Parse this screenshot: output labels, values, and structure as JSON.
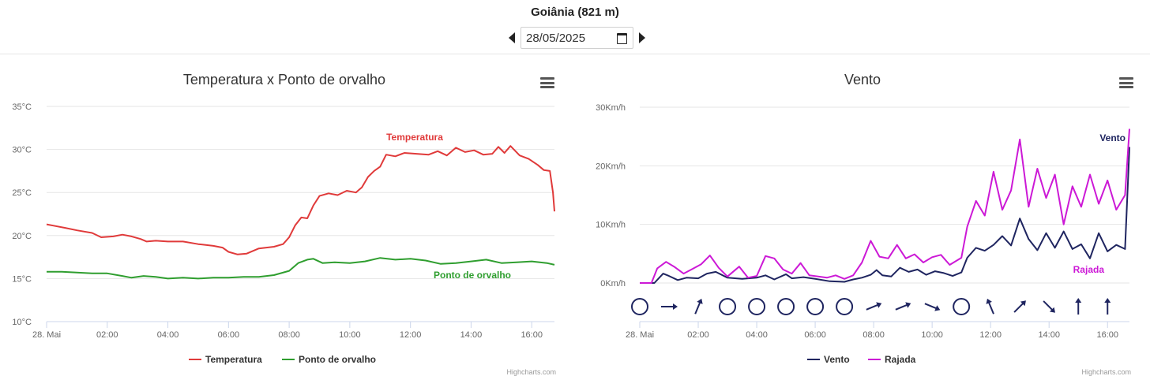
{
  "header": {
    "station": "Goiânia (821 m)",
    "date_value": "28/05/2025"
  },
  "credits": "Highcharts.com",
  "chart_data": [
    {
      "type": "line",
      "title": "Temperatura x Ponto de orvalho",
      "yTicks": [
        "10°C",
        "15°C",
        "20°C",
        "25°C",
        "30°C",
        "35°C"
      ],
      "xTicks": [
        "28. Mai",
        "02:00",
        "04:00",
        "06:00",
        "08:00",
        "10:00",
        "12:00",
        "14:00",
        "16:00"
      ],
      "xlim_hours": [
        0,
        16.75
      ],
      "ylim": [
        10,
        35
      ],
      "grid": true,
      "legend": "bottom-center",
      "series": [
        {
          "name": "Temperatura",
          "color": "#e03a3a",
          "points": [
            [
              0,
              21.3
            ],
            [
              0.3,
              21.1
            ],
            [
              0.6,
              20.9
            ],
            [
              1,
              20.6
            ],
            [
              1.5,
              20.3
            ],
            [
              1.8,
              19.8
            ],
            [
              2.2,
              19.9
            ],
            [
              2.5,
              20.1
            ],
            [
              2.8,
              19.9
            ],
            [
              3.1,
              19.6
            ],
            [
              3.3,
              19.3
            ],
            [
              3.6,
              19.4
            ],
            [
              4,
              19.3
            ],
            [
              4.5,
              19.3
            ],
            [
              5,
              19.0
            ],
            [
              5.5,
              18.8
            ],
            [
              5.8,
              18.6
            ],
            [
              6.0,
              18.1
            ],
            [
              6.3,
              17.8
            ],
            [
              6.6,
              17.9
            ],
            [
              7.0,
              18.5
            ],
            [
              7.5,
              18.7
            ],
            [
              7.8,
              19.0
            ],
            [
              8.0,
              19.8
            ],
            [
              8.2,
              21.2
            ],
            [
              8.4,
              22.1
            ],
            [
              8.6,
              22.0
            ],
            [
              8.8,
              23.5
            ],
            [
              9.0,
              24.6
            ],
            [
              9.3,
              24.9
            ],
            [
              9.6,
              24.7
            ],
            [
              9.9,
              25.2
            ],
            [
              10.2,
              25.0
            ],
            [
              10.4,
              25.6
            ],
            [
              10.6,
              26.8
            ],
            [
              10.8,
              27.5
            ],
            [
              11.0,
              28.0
            ],
            [
              11.2,
              29.4
            ],
            [
              11.5,
              29.2
            ],
            [
              11.8,
              29.6
            ],
            [
              12.2,
              29.5
            ],
            [
              12.6,
              29.4
            ],
            [
              12.9,
              29.8
            ],
            [
              13.2,
              29.3
            ],
            [
              13.5,
              30.2
            ],
            [
              13.8,
              29.7
            ],
            [
              14.1,
              29.9
            ],
            [
              14.4,
              29.4
            ],
            [
              14.7,
              29.5
            ],
            [
              14.9,
              30.3
            ],
            [
              15.1,
              29.6
            ],
            [
              15.3,
              30.4
            ],
            [
              15.6,
              29.3
            ],
            [
              15.9,
              28.9
            ],
            [
              16.2,
              28.2
            ],
            [
              16.4,
              27.6
            ],
            [
              16.6,
              27.5
            ],
            [
              16.7,
              25.0
            ],
            [
              16.75,
              22.8
            ]
          ]
        },
        {
          "name": "Ponto de orvalho",
          "color": "#2f9e2f",
          "points": [
            [
              0,
              15.8
            ],
            [
              0.5,
              15.8
            ],
            [
              1,
              15.7
            ],
            [
              1.5,
              15.6
            ],
            [
              2,
              15.6
            ],
            [
              2.5,
              15.3
            ],
            [
              2.8,
              15.1
            ],
            [
              3.2,
              15.3
            ],
            [
              3.6,
              15.2
            ],
            [
              4,
              15.0
            ],
            [
              4.5,
              15.1
            ],
            [
              5,
              15.0
            ],
            [
              5.5,
              15.1
            ],
            [
              6,
              15.1
            ],
            [
              6.5,
              15.2
            ],
            [
              7,
              15.2
            ],
            [
              7.5,
              15.4
            ],
            [
              8,
              15.9
            ],
            [
              8.3,
              16.8
            ],
            [
              8.6,
              17.2
            ],
            [
              8.8,
              17.3
            ],
            [
              9.1,
              16.8
            ],
            [
              9.5,
              16.9
            ],
            [
              10,
              16.8
            ],
            [
              10.5,
              17.0
            ],
            [
              11,
              17.4
            ],
            [
              11.5,
              17.2
            ],
            [
              12,
              17.3
            ],
            [
              12.5,
              17.1
            ],
            [
              13,
              16.7
            ],
            [
              13.5,
              16.8
            ],
            [
              14,
              17.0
            ],
            [
              14.5,
              17.2
            ],
            [
              15,
              16.8
            ],
            [
              15.5,
              16.9
            ],
            [
              16,
              17.0
            ],
            [
              16.5,
              16.8
            ],
            [
              16.75,
              16.6
            ]
          ]
        }
      ]
    },
    {
      "type": "line",
      "title": "Vento",
      "yTicks": [
        "0Km/h",
        "10Km/h",
        "20Km/h",
        "30Km/h"
      ],
      "xTicks": [
        "28. Mai",
        "02:00",
        "04:00",
        "06:00",
        "08:00",
        "10:00",
        "12:00",
        "14:00",
        "16:00"
      ],
      "xlim_hours": [
        0,
        16.75
      ],
      "ylim": [
        0,
        30
      ],
      "grid": true,
      "legend": "bottom-center",
      "series": [
        {
          "name": "Vento",
          "color": "#1f2560",
          "points": [
            [
              0,
              0
            ],
            [
              0.5,
              0
            ],
            [
              0.8,
              1.6
            ],
            [
              1,
              1.2
            ],
            [
              1.3,
              0.5
            ],
            [
              1.6,
              0.9
            ],
            [
              2,
              0.8
            ],
            [
              2.3,
              1.6
            ],
            [
              2.6,
              1.9
            ],
            [
              3,
              0.9
            ],
            [
              3.5,
              0.7
            ],
            [
              4,
              0.9
            ],
            [
              4.3,
              1.3
            ],
            [
              4.6,
              0.6
            ],
            [
              5,
              1.5
            ],
            [
              5.2,
              0.8
            ],
            [
              5.6,
              1.0
            ],
            [
              6,
              0.7
            ],
            [
              6.5,
              0.3
            ],
            [
              7,
              0.2
            ],
            [
              7.3,
              0.6
            ],
            [
              7.6,
              0.9
            ],
            [
              7.9,
              1.4
            ],
            [
              8.1,
              2.2
            ],
            [
              8.3,
              1.3
            ],
            [
              8.6,
              1.1
            ],
            [
              8.9,
              2.6
            ],
            [
              9.2,
              1.9
            ],
            [
              9.5,
              2.3
            ],
            [
              9.8,
              1.4
            ],
            [
              10.1,
              2.0
            ],
            [
              10.4,
              1.7
            ],
            [
              10.7,
              1.2
            ],
            [
              11,
              1.8
            ],
            [
              11.2,
              4.3
            ],
            [
              11.5,
              6.0
            ],
            [
              11.8,
              5.5
            ],
            [
              12.1,
              6.5
            ],
            [
              12.4,
              8.0
            ],
            [
              12.7,
              6.4
            ],
            [
              13,
              11.0
            ],
            [
              13.3,
              7.5
            ],
            [
              13.6,
              5.6
            ],
            [
              13.9,
              8.5
            ],
            [
              14.2,
              6.0
            ],
            [
              14.5,
              8.8
            ],
            [
              14.8,
              5.8
            ],
            [
              15.1,
              6.6
            ],
            [
              15.4,
              4.2
            ],
            [
              15.7,
              8.5
            ],
            [
              16,
              5.4
            ],
            [
              16.3,
              6.5
            ],
            [
              16.6,
              5.8
            ],
            [
              16.75,
              23.2
            ]
          ]
        },
        {
          "name": "Rajada",
          "color": "#cc19d6",
          "points": [
            [
              0,
              0
            ],
            [
              0.4,
              0
            ],
            [
              0.6,
              2.5
            ],
            [
              0.9,
              3.6
            ],
            [
              1.2,
              2.7
            ],
            [
              1.5,
              1.6
            ],
            [
              1.8,
              2.4
            ],
            [
              2.1,
              3.2
            ],
            [
              2.4,
              4.7
            ],
            [
              2.7,
              2.6
            ],
            [
              3,
              1.1
            ],
            [
              3.4,
              2.8
            ],
            [
              3.7,
              0.9
            ],
            [
              4,
              1.2
            ],
            [
              4.3,
              4.6
            ],
            [
              4.6,
              4.2
            ],
            [
              4.9,
              2.3
            ],
            [
              5.2,
              1.6
            ],
            [
              5.5,
              3.4
            ],
            [
              5.8,
              1.3
            ],
            [
              6.1,
              1.1
            ],
            [
              6.4,
              0.9
            ],
            [
              6.7,
              1.3
            ],
            [
              7,
              0.7
            ],
            [
              7.3,
              1.3
            ],
            [
              7.6,
              3.5
            ],
            [
              7.9,
              7.2
            ],
            [
              8.2,
              4.5
            ],
            [
              8.5,
              4.2
            ],
            [
              8.8,
              6.5
            ],
            [
              9.1,
              4.2
            ],
            [
              9.4,
              4.9
            ],
            [
              9.7,
              3.5
            ],
            [
              10,
              4.4
            ],
            [
              10.3,
              4.8
            ],
            [
              10.6,
              3.1
            ],
            [
              11,
              4.3
            ],
            [
              11.2,
              9.6
            ],
            [
              11.5,
              14.0
            ],
            [
              11.8,
              11.5
            ],
            [
              12.1,
              19.0
            ],
            [
              12.4,
              12.5
            ],
            [
              12.7,
              15.8
            ],
            [
              13,
              24.5
            ],
            [
              13.3,
              13.0
            ],
            [
              13.6,
              19.5
            ],
            [
              13.9,
              14.5
            ],
            [
              14.2,
              18.5
            ],
            [
              14.5,
              10.0
            ],
            [
              14.8,
              16.5
            ],
            [
              15.1,
              13.0
            ],
            [
              15.4,
              18.5
            ],
            [
              15.7,
              13.5
            ],
            [
              16,
              17.5
            ],
            [
              16.3,
              12.5
            ],
            [
              16.6,
              15.0
            ],
            [
              16.75,
              26.3
            ]
          ]
        }
      ],
      "direction_arrows": [
        "calm",
        "E",
        "NNE",
        "calm",
        "calm",
        "calm",
        "calm",
        "calm",
        "ENE",
        "ENE",
        "ESE",
        "calm",
        "NNW",
        "NE",
        "SE",
        "N",
        "N"
      ]
    }
  ]
}
